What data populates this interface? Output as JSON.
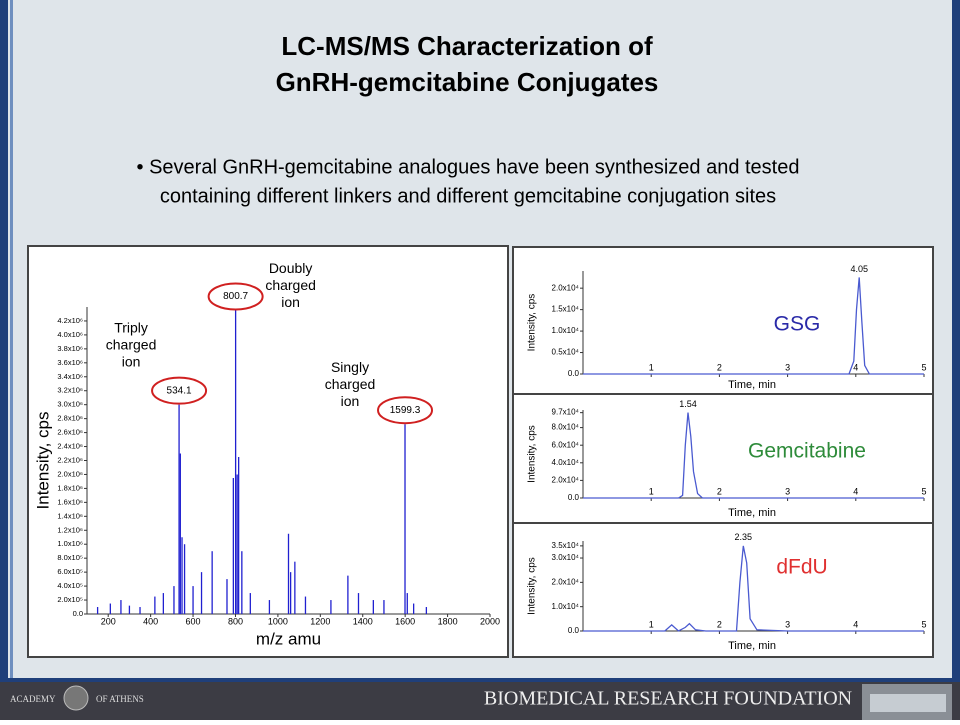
{
  "slide": {
    "title_lines": [
      "LC-MS/MS Characterization of",
      "GnRH-gemcitabine Conjugates"
    ],
    "bullet_lines": [
      "• Several GnRH-gemcitabine analogues have been synthesized and tested",
      "containing different linkers and different gemcitabine conjugation sites"
    ]
  },
  "footer": {
    "left": [
      "ACADEMY",
      "OF ATHENS"
    ],
    "right": "BIOMEDICAL RESEARCH FOUNDATION"
  },
  "chart_data": [
    {
      "type": "stem",
      "x_label": "m/z amu",
      "y_label": "Intensity, cps",
      "color": "#2020d0",
      "x": [
        150,
        210,
        260,
        300,
        350,
        420,
        460,
        510,
        534.1,
        540,
        548,
        560,
        600,
        640,
        690,
        760,
        790,
        800.7,
        808,
        815,
        830,
        870,
        960,
        1050,
        1060,
        1080,
        1130,
        1250,
        1330,
        1380,
        1450,
        1500,
        1599.3,
        1610,
        1640,
        1700
      ],
      "values": [
        100000,
        150000,
        200000,
        120000,
        100000,
        250000,
        300000,
        400000,
        3000000,
        2300000,
        1100000,
        1000000,
        400000,
        600000,
        900000,
        500000,
        1950000,
        4350000,
        2000000,
        2250000,
        900000,
        300000,
        200000,
        1150000,
        600000,
        750000,
        250000,
        200000,
        550000,
        300000,
        200000,
        200000,
        2720000,
        300000,
        150000,
        100000
      ],
      "xlim": [
        100,
        2000
      ],
      "xticks": [
        200,
        400,
        600,
        800,
        1000,
        1200,
        1400,
        1600,
        1800,
        2000
      ],
      "ylim": [
        0,
        4400000
      ],
      "yticks": [
        {
          "value": 0,
          "label": "0.0"
        },
        {
          "value": 200000,
          "label": "2.0x10⁵"
        },
        {
          "value": 400000,
          "label": "4.0x10⁵"
        },
        {
          "value": 600000,
          "label": "6.0x10⁵"
        },
        {
          "value": 800000,
          "label": "8.0x10⁵"
        },
        {
          "value": 1000000,
          "label": "1.0x10⁶"
        },
        {
          "value": 1200000,
          "label": "1.2x10⁶"
        },
        {
          "value": 1400000,
          "label": "1.4x10⁶"
        },
        {
          "value": 1600000,
          "label": "1.6x10⁶"
        },
        {
          "value": 1800000,
          "label": "1.8x10⁶"
        },
        {
          "value": 2000000,
          "label": "2.0x10⁶"
        },
        {
          "value": 2200000,
          "label": "2.2x10⁶"
        },
        {
          "value": 2400000,
          "label": "2.4x10⁶"
        },
        {
          "value": 2600000,
          "label": "2.6x10⁶"
        },
        {
          "value": 2800000,
          "label": "2.8x10⁶"
        },
        {
          "value": 3000000,
          "label": "3.0x10⁶"
        },
        {
          "value": 3200000,
          "label": "3.2x10⁶"
        },
        {
          "value": 3400000,
          "label": "3.4x10⁶"
        },
        {
          "value": 3600000,
          "label": "3.6x10⁶"
        },
        {
          "value": 3800000,
          "label": "3.8x10⁶"
        },
        {
          "value": 4000000,
          "label": "4.0x10⁶"
        },
        {
          "value": 4200000,
          "label": "4.2x10⁶"
        }
      ],
      "annotations": [
        {
          "x": 534.1,
          "label": "534.1",
          "note": [
            "Triply",
            "charged",
            "ion"
          ]
        },
        {
          "x": 800.7,
          "label": "800.7",
          "note": [
            "Doubly",
            "charged",
            "ion"
          ]
        },
        {
          "x": 1599.3,
          "label": "1599.3",
          "note": [
            "Singly",
            "charged",
            "ion"
          ]
        }
      ]
    },
    {
      "type": "line",
      "title": "GSG",
      "title_color": "#2a2aa8",
      "color": "#4a5ad0",
      "x_label": "Time, min",
      "y_label": "Intensity, cps",
      "x": [
        0,
        0.5,
        1,
        1.5,
        2,
        2.5,
        3,
        3.5,
        3.9,
        3.97,
        4.01,
        4.05,
        4.09,
        4.13,
        4.2,
        4.5,
        5
      ],
      "values": [
        0,
        0,
        0,
        0,
        0,
        0,
        0,
        0,
        0,
        3000,
        15000,
        22500,
        12000,
        2000,
        0,
        0,
        0
      ],
      "xlim": [
        0,
        5
      ],
      "xticks": [
        1,
        2,
        3,
        4,
        5
      ],
      "ylim": [
        0,
        24000
      ],
      "yticks": [
        {
          "value": 0,
          "label": "0.0"
        },
        {
          "value": 5000,
          "label": "0.5x10⁴"
        },
        {
          "value": 10000,
          "label": "1.0x10⁴"
        },
        {
          "value": 15000,
          "label": "1.5x10⁴"
        },
        {
          "value": 20000,
          "label": "2.0x10⁴"
        }
      ],
      "peak_label": 4.05
    },
    {
      "type": "line",
      "title": "Gemcitabine",
      "title_color": "#2e8b3a",
      "color": "#4a5ad0",
      "x_label": "Time, min",
      "y_label": "Intensity, cps",
      "x": [
        0,
        0.5,
        1,
        1.4,
        1.46,
        1.5,
        1.54,
        1.58,
        1.62,
        1.68,
        1.75,
        2,
        3,
        4,
        5
      ],
      "values": [
        0,
        0,
        0,
        0,
        3000,
        60000,
        97000,
        70000,
        30000,
        5000,
        0,
        0,
        0,
        0,
        0
      ],
      "xlim": [
        0,
        5
      ],
      "xticks": [
        1,
        2,
        3,
        4,
        5
      ],
      "ylim": [
        0,
        100000
      ],
      "yticks": [
        {
          "value": 0,
          "label": "0.0"
        },
        {
          "value": 20000,
          "label": "2.0x10⁴"
        },
        {
          "value": 40000,
          "label": "4.0x10⁴"
        },
        {
          "value": 60000,
          "label": "6.0x10⁴"
        },
        {
          "value": 80000,
          "label": "8.0x10⁴"
        },
        {
          "value": 97000,
          "label": "9.7x10⁴"
        }
      ],
      "peak_label": 1.54
    },
    {
      "type": "line",
      "title": "dFdU",
      "title_color": "#e03030",
      "color": "#4a5ad0",
      "x_label": "Time, min",
      "y_label": "Intensity, cps",
      "x": [
        0,
        0.5,
        1,
        1.2,
        1.3,
        1.4,
        1.5,
        1.56,
        1.65,
        1.8,
        2,
        2.25,
        2.3,
        2.35,
        2.4,
        2.45,
        2.55,
        3,
        4,
        5
      ],
      "values": [
        0,
        0,
        0,
        0,
        2500,
        0,
        1500,
        3000,
        500,
        0,
        0,
        0,
        20000,
        35000,
        28000,
        5000,
        500,
        0,
        0,
        0
      ],
      "xlim": [
        0,
        5
      ],
      "xticks": [
        1,
        2,
        3,
        4,
        5
      ],
      "ylim": [
        0,
        37000
      ],
      "yticks": [
        {
          "value": 0,
          "label": "0.0"
        },
        {
          "value": 10000,
          "label": "1.0x10⁴"
        },
        {
          "value": 20000,
          "label": "2.0x10⁴"
        },
        {
          "value": 30000,
          "label": "3.0x10⁴"
        },
        {
          "value": 35000,
          "label": "3.5x10⁴"
        }
      ],
      "peak_label": 2.35
    }
  ]
}
